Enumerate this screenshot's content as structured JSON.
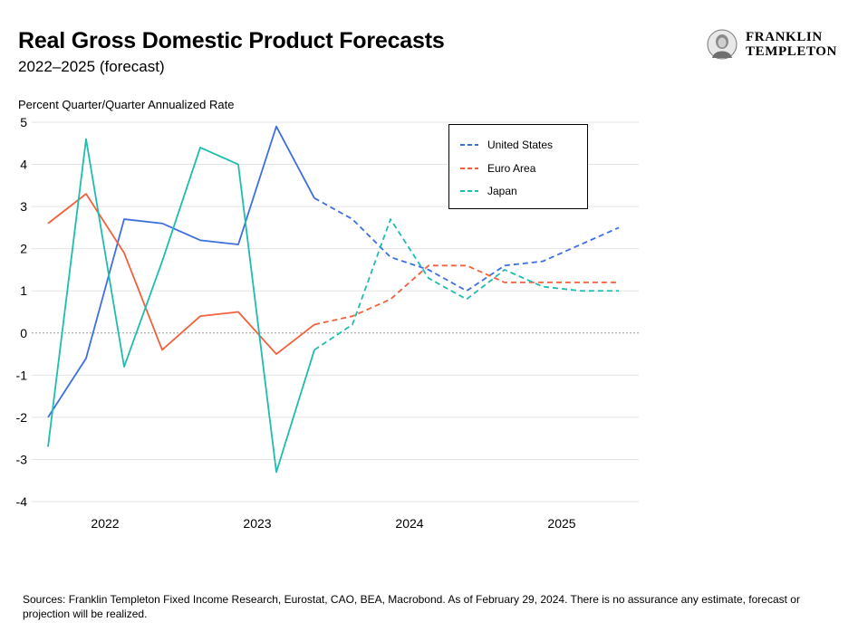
{
  "header": {
    "title": "Real Gross Domestic Product Forecasts",
    "subtitle": "2022–2025 (forecast)"
  },
  "logo": {
    "line1": "FRANKLIN",
    "line2": "TEMPLETON"
  },
  "footer": {
    "source": "Sources: Franklin Templeton Fixed Income Research, Eurostat, CAO, BEA, Macrobond. As of February 29, 2024. There is no assurance any estimate, forecast or projection will be realized."
  },
  "chart_data": {
    "type": "line",
    "title": "Real Gross Domestic Product Forecasts",
    "subtitle": "2022–2025 (forecast)",
    "ylabel": "Percent Quarter/Quarter Annualized Rate",
    "xlabel": "",
    "ylim": [
      -4,
      5
    ],
    "yticks": [
      5,
      4,
      3,
      2,
      1,
      0,
      -1,
      -2,
      -3,
      -4
    ],
    "x": [
      "2022 Q1",
      "2022 Q2",
      "2022 Q3",
      "2022 Q4",
      "2023 Q1",
      "2023 Q2",
      "2023 Q3",
      "2023 Q4",
      "2024 Q1",
      "2024 Q2",
      "2024 Q3",
      "2024 Q4",
      "2025 Q1",
      "2025 Q2",
      "2025 Q3",
      "2025 Q4"
    ],
    "xtick_labels": [
      "2022",
      "2023",
      "2024",
      "2025"
    ],
    "forecast_start": "2023 Q4",
    "grid": true,
    "zero_line": "dotted",
    "legend_position": "top-right",
    "series": [
      {
        "name": "United States",
        "color": "#3d6fe0",
        "values": [
          -2.0,
          -0.6,
          2.7,
          2.6,
          2.2,
          2.1,
          4.9,
          3.2,
          2.7,
          1.8,
          1.5,
          1.0,
          1.6,
          1.7,
          2.1,
          2.5
        ]
      },
      {
        "name": "Euro Area",
        "color": "#f2613c",
        "values": [
          2.6,
          3.3,
          1.9,
          -0.4,
          0.4,
          0.5,
          -0.5,
          0.2,
          0.4,
          0.8,
          1.6,
          1.6,
          1.2,
          1.2,
          1.2,
          1.2
        ]
      },
      {
        "name": "Japan",
        "color": "#1fbcaf",
        "values": [
          -2.7,
          4.6,
          -0.8,
          1.7,
          4.4,
          4.0,
          -3.3,
          -0.4,
          0.2,
          2.7,
          1.3,
          0.8,
          1.5,
          1.1,
          1.0,
          1.0
        ]
      }
    ]
  }
}
